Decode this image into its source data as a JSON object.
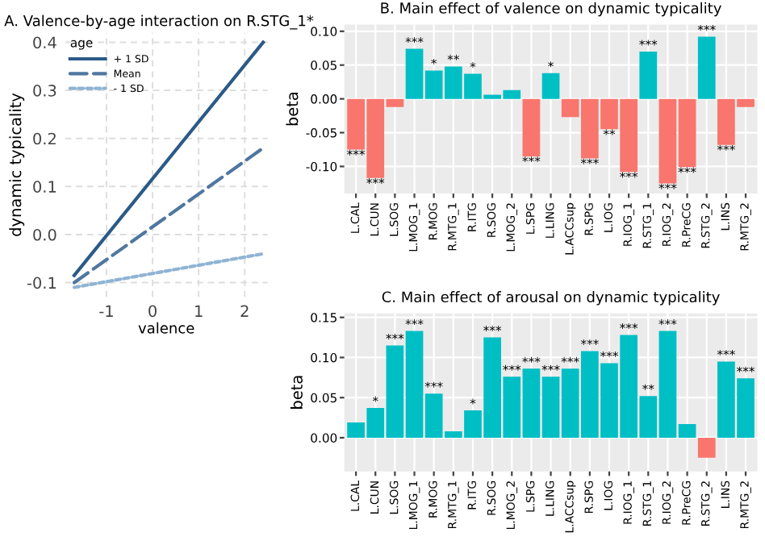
{
  "chart_data": [
    {
      "type": "line",
      "title": "A. Valence-by-age interaction on R.STG_1*",
      "xlabel": "valence",
      "ylabel": "dynamic typicality",
      "legend_title": "age",
      "legend": "top left",
      "grid": true,
      "x": [
        -1.7,
        2.4
      ],
      "xlim": [
        -1.9,
        2.5
      ],
      "xticks": [
        -1,
        0,
        1,
        2
      ],
      "ylim": [
        -0.13,
        0.42
      ],
      "yticks": [
        {
          "value": -0.1,
          "label": "-0.1"
        },
        {
          "value": 0,
          "label": "0.0"
        },
        0.1,
        0.2,
        0.3,
        0.4
      ],
      "series": [
        {
          "name": "+ 1 SD",
          "color": "#2b5a87",
          "line_style": "solid",
          "values": [
            -0.085,
            0.4
          ]
        },
        {
          "name": "Mean",
          "color": "#4f77a0",
          "line_style": "dashed",
          "values": [
            -0.1,
            0.18
          ]
        },
        {
          "name": "- 1 SD",
          "color": "#8fb4d3",
          "line_style": "dotted",
          "values": [
            -0.11,
            -0.04
          ]
        }
      ]
    },
    {
      "type": "bar",
      "title": "B. Main effect of valence on dynamic typicality",
      "ylabel": "beta",
      "grid": true,
      "categories": [
        "L.CAL",
        "L.CUN",
        "L.SOG",
        "L.MOG_1",
        "R.MOG",
        "R.MTG_1",
        "R.ITG",
        "R.SOG",
        "L.MOG_2",
        "L.SPG",
        "L.LING",
        "L.ACCsup",
        "R.SPG",
        "L.IOG",
        "R.IOG_1",
        "R.STG_1",
        "R.IOG_2",
        "R.PreCG",
        "R.STG_2",
        "L.INS",
        "R.MTG_2"
      ],
      "ylim": [
        -0.14,
        0.11
      ],
      "yticks": [
        {
          "value": -0.1,
          "label": "-0.10"
        },
        {
          "value": -0.05,
          "label": "-0.05"
        },
        {
          "value": 0,
          "label": "0.00"
        },
        {
          "value": 0.05,
          "label": "0.05"
        },
        {
          "value": 0.1,
          "label": "0.10"
        }
      ],
      "values": [
        -0.075,
        -0.117,
        -0.012,
        0.074,
        0.042,
        0.048,
        0.037,
        0.006,
        0.013,
        -0.085,
        0.038,
        -0.027,
        -0.088,
        -0.045,
        -0.108,
        0.07,
        -0.125,
        -0.101,
        0.092,
        -0.068,
        -0.012
      ],
      "colors": [
        "#f8766d",
        "#f8766d",
        "#f8766d",
        "#00bfc4",
        "#00bfc4",
        "#00bfc4",
        "#00bfc4",
        "#00bfc4",
        "#00bfc4",
        "#f8766d",
        "#00bfc4",
        "#f8766d",
        "#f8766d",
        "#f8766d",
        "#f8766d",
        "#00bfc4",
        "#f8766d",
        "#f8766d",
        "#00bfc4",
        "#f8766d",
        "#f8766d"
      ],
      "value_labels": [
        "***",
        "***",
        null,
        "***",
        "*",
        "**",
        "*",
        null,
        null,
        "***",
        "*",
        null,
        "***",
        "**",
        "***",
        "***",
        "***",
        "***",
        "***",
        "***",
        null
      ]
    },
    {
      "type": "bar",
      "title": "C. Main effect of arousal on dynamic typicality",
      "ylabel": "beta",
      "grid": true,
      "categories": [
        "L.CAL",
        "L.CUN",
        "L.SOG",
        "L.MOG_1",
        "R.MOG",
        "R.MTG_1",
        "R.ITG",
        "R.SOG",
        "L.MOG_2",
        "L.SPG",
        "L.LING",
        "L.ACCsup",
        "R.SPG",
        "L.IOG",
        "R.IOG_1",
        "R.STG_1",
        "R.IOG_2",
        "R.PreCG",
        "R.STG_2",
        "L.INS",
        "R.MTG_2"
      ],
      "ylim": [
        -0.042,
        0.155
      ],
      "yticks": [
        {
          "value": 0,
          "label": "0.00"
        },
        {
          "value": 0.05,
          "label": "0.05"
        },
        {
          "value": 0.1,
          "label": "0.10"
        },
        {
          "value": 0.15,
          "label": "0.15"
        }
      ],
      "values": [
        0.019,
        0.037,
        0.115,
        0.133,
        0.055,
        0.008,
        0.034,
        0.125,
        0.076,
        0.086,
        0.076,
        0.086,
        0.108,
        0.093,
        0.128,
        0.052,
        0.133,
        0.017,
        -0.025,
        0.095,
        0.074
      ],
      "colors": [
        "#00bfc4",
        "#00bfc4",
        "#00bfc4",
        "#00bfc4",
        "#00bfc4",
        "#00bfc4",
        "#00bfc4",
        "#00bfc4",
        "#00bfc4",
        "#00bfc4",
        "#00bfc4",
        "#00bfc4",
        "#00bfc4",
        "#00bfc4",
        "#00bfc4",
        "#00bfc4",
        "#00bfc4",
        "#00bfc4",
        "#f8766d",
        "#00bfc4",
        "#00bfc4"
      ],
      "value_labels": [
        null,
        "*",
        "***",
        "***",
        "***",
        null,
        "*",
        "***",
        "***",
        "***",
        "***",
        "***",
        "***",
        "***",
        "***",
        "**",
        "***",
        null,
        null,
        "***",
        "***"
      ]
    }
  ]
}
